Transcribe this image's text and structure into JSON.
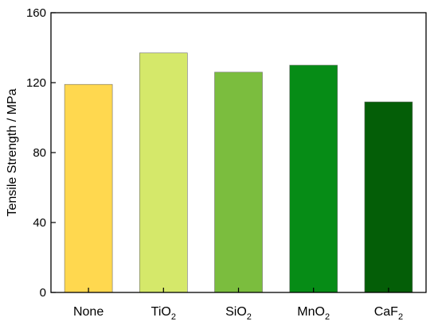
{
  "chart_data": {
    "type": "bar",
    "categories": [
      {
        "base": "None",
        "sub": ""
      },
      {
        "base": "TiO",
        "sub": "2"
      },
      {
        "base": "SiO",
        "sub": "2"
      },
      {
        "base": "MnO",
        "sub": "2"
      },
      {
        "base": "CaF",
        "sub": "2"
      }
    ],
    "values": [
      119,
      137,
      126,
      130,
      109
    ],
    "colors": [
      "#FFD84F",
      "#D5E86A",
      "#7BBD3E",
      "#068C16",
      "#045E07"
    ],
    "ylabel": "Tensile Strength / MPa",
    "xlabel": "",
    "ylim": [
      0,
      160
    ],
    "yticks": [
      0,
      40,
      80,
      120,
      160
    ],
    "grid": false,
    "legend": false
  }
}
